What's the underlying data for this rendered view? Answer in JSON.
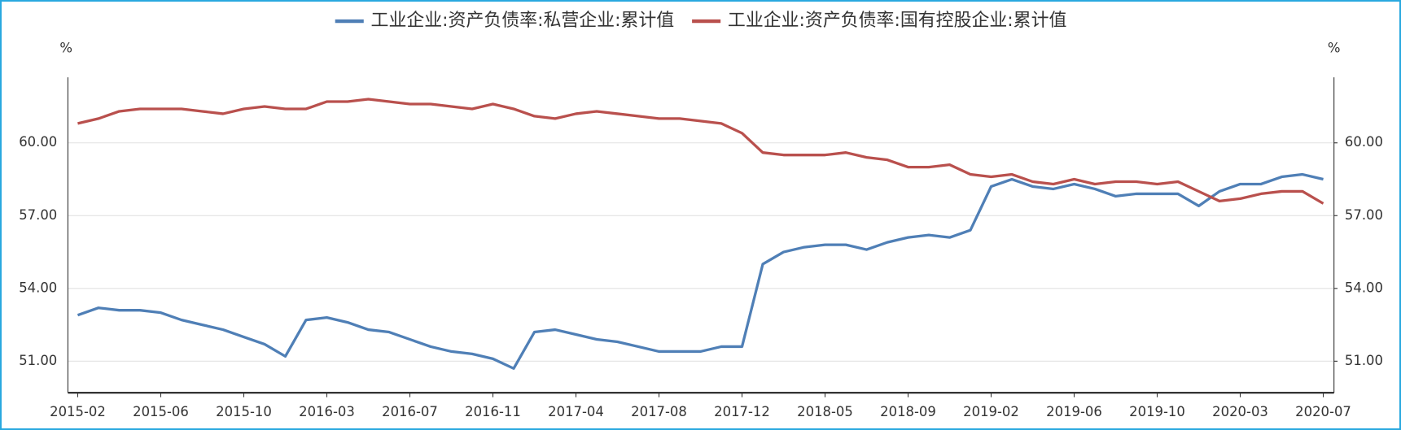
{
  "chart_data": {
    "type": "line",
    "y_unit": "%",
    "y2_unit": "%",
    "categories": [
      "2015-02",
      null,
      null,
      null,
      "2015-06",
      null,
      null,
      null,
      "2015-10",
      null,
      null,
      null,
      "2016-03",
      null,
      null,
      null,
      "2016-07",
      null,
      null,
      null,
      "2016-11",
      null,
      null,
      null,
      "2017-04",
      null,
      null,
      null,
      "2017-08",
      null,
      null,
      null,
      "2017-12",
      null,
      null,
      null,
      "2018-05",
      null,
      null,
      null,
      "2018-09",
      null,
      null,
      null,
      "2019-02",
      null,
      null,
      null,
      "2019-06",
      null,
      null,
      null,
      "2019-10",
      null,
      null,
      null,
      "2020-03",
      null,
      null,
      null,
      "2020-07"
    ],
    "series": [
      {
        "name": "工业企业:资产负债率:私营企业:累计值",
        "color": "#4f7fb6",
        "values": [
          52.9,
          53.2,
          53.1,
          53.1,
          53.0,
          52.7,
          52.5,
          52.3,
          52.0,
          51.7,
          51.2,
          52.7,
          52.8,
          52.6,
          52.3,
          52.2,
          51.9,
          51.6,
          51.4,
          51.3,
          51.1,
          50.7,
          52.2,
          52.3,
          52.1,
          51.9,
          51.8,
          51.6,
          51.4,
          51.4,
          51.4,
          51.6,
          51.6,
          55.0,
          55.5,
          55.7,
          55.8,
          55.8,
          55.6,
          55.9,
          56.1,
          56.2,
          56.1,
          56.4,
          58.2,
          58.5,
          58.2,
          58.1,
          58.3,
          58.1,
          57.8,
          57.9,
          57.9,
          57.9,
          57.4,
          58.0,
          58.3,
          58.3,
          58.6,
          58.7,
          58.5
        ]
      },
      {
        "name": "工业企业:资产负债率:国有控股企业:累计值",
        "color": "#b9504d",
        "values": [
          60.8,
          61.0,
          61.3,
          61.4,
          61.4,
          61.4,
          61.3,
          61.2,
          61.4,
          61.5,
          61.4,
          61.4,
          61.7,
          61.7,
          61.8,
          61.7,
          61.6,
          61.6,
          61.5,
          61.4,
          61.6,
          61.4,
          61.1,
          61.0,
          61.2,
          61.3,
          61.2,
          61.1,
          61.0,
          61.0,
          60.9,
          60.8,
          60.4,
          59.6,
          59.5,
          59.5,
          59.5,
          59.6,
          59.4,
          59.3,
          59.0,
          59.0,
          59.1,
          58.7,
          58.6,
          58.7,
          58.4,
          58.3,
          58.5,
          58.3,
          58.4,
          58.4,
          58.3,
          58.4,
          58.0,
          57.6,
          57.7,
          57.9,
          58.0,
          58.0,
          57.5
        ]
      }
    ],
    "ylim": [
      49.7,
      62.7
    ],
    "yticks": [
      {
        "value": 51,
        "label": "51.00"
      },
      {
        "value": 54,
        "label": "54.00"
      },
      {
        "value": 57,
        "label": "57.00"
      },
      {
        "value": 60,
        "label": "60.00"
      }
    ],
    "y2lim": [
      49.7,
      62.7
    ],
    "y2ticks": [
      {
        "value": 51,
        "label": "51.00"
      },
      {
        "value": 54,
        "label": "54.00"
      },
      {
        "value": 57,
        "label": "57.00"
      },
      {
        "value": 60,
        "label": "60.00"
      }
    ],
    "grid": true,
    "legend": "top"
  }
}
